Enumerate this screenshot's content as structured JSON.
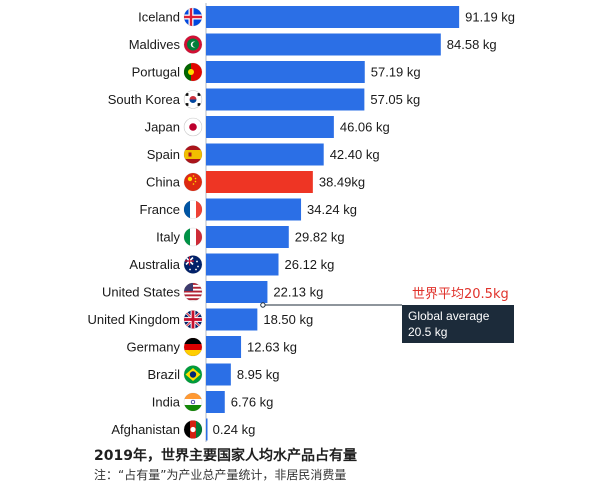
{
  "chart_data": {
    "type": "bar",
    "orientation": "horizontal",
    "categories": [
      "Iceland",
      "Maldives",
      "Portugal",
      "South Korea",
      "Japan",
      "Spain",
      "China",
      "France",
      "Italy",
      "Australia",
      "United States",
      "United Kingdom",
      "Germany",
      "Brazil",
      "India",
      "Afghanistan"
    ],
    "values": [
      91.19,
      84.58,
      57.19,
      57.05,
      46.06,
      42.4,
      38.49,
      34.24,
      29.82,
      26.12,
      22.13,
      18.5,
      12.63,
      8.95,
      6.76,
      0.24
    ],
    "value_labels": [
      "91.19 kg",
      "84.58 kg",
      "57.19 kg",
      "57.05 kg",
      "46.06 kg",
      "42.40 kg",
      "38.49kg",
      "34.24 kg",
      "29.82 kg",
      "26.12 kg",
      "22.13 kg",
      "18.50 kg",
      "12.63 kg",
      "8.95 kg",
      "6.76 kg",
      "0.24 kg"
    ],
    "highlight": "China",
    "colors": {
      "bar": "#2b6fe6",
      "highlight": "#ee3524",
      "marker": "#1c2b3a",
      "annotation_cn": "#e0322b"
    },
    "flags": [
      "iceland-flag",
      "maldives-flag",
      "portugal-flag",
      "south-korea-flag",
      "japan-flag",
      "spain-flag",
      "china-flag",
      "france-flag",
      "italy-flag",
      "australia-flag",
      "united-states-flag",
      "united-kingdom-flag",
      "germany-flag",
      "brazil-flag",
      "india-flag",
      "afghanistan-flag"
    ],
    "reference_line": {
      "value": 20.5,
      "label_cn": "世界平均20.5kg",
      "label_line1": "Global average",
      "label_line2": "20.5 kg"
    },
    "xlim": [
      0,
      100
    ],
    "grid": false
  },
  "caption": {
    "title": "2019年，世界主要国家人均水产品占有量",
    "note": "注：“占有量”为产业总产量统计，非居民消费量"
  }
}
